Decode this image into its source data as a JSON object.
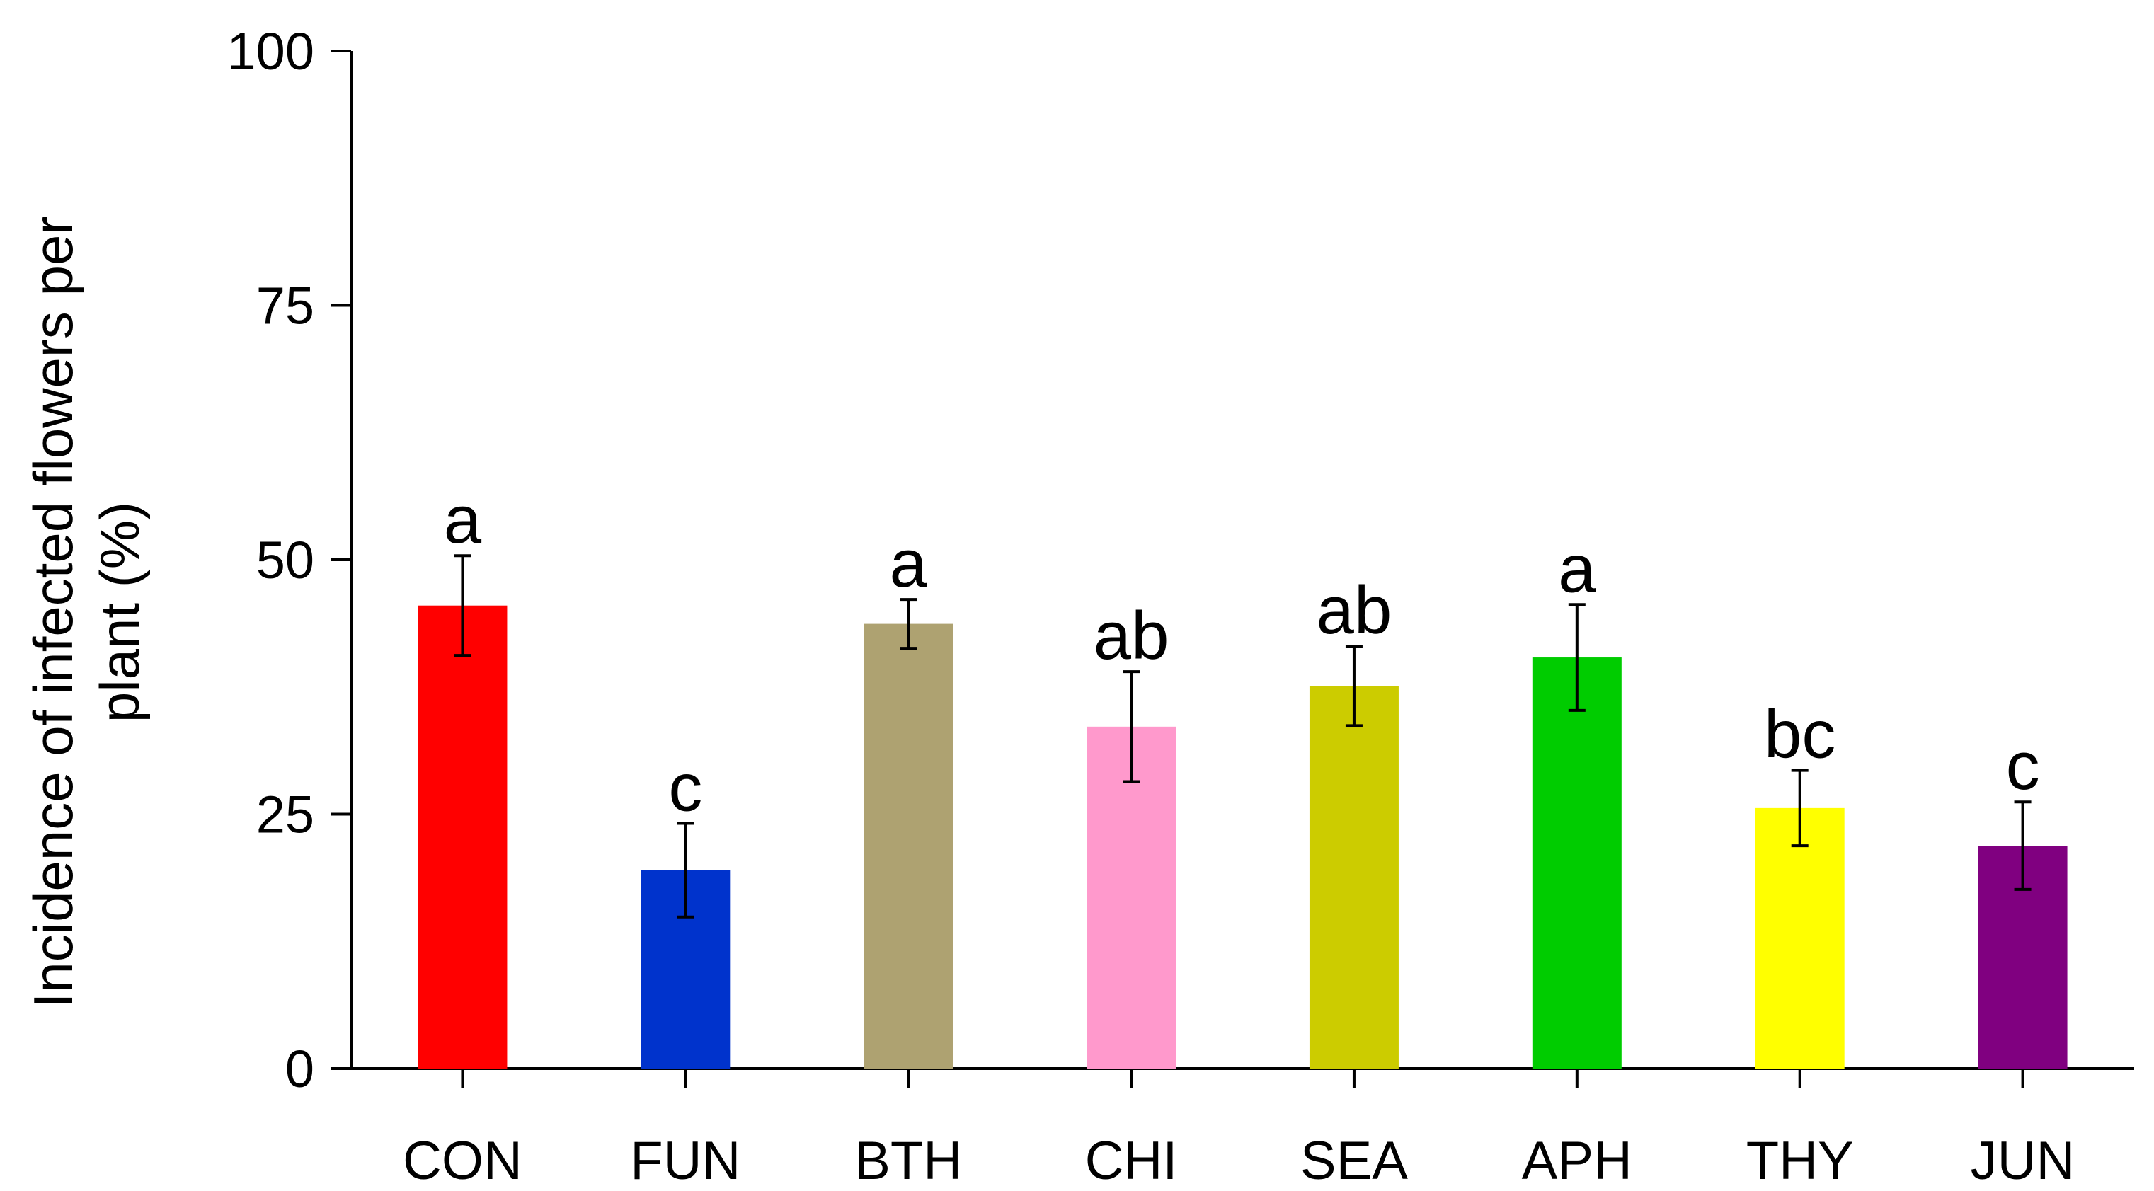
{
  "chart_data": {
    "type": "bar",
    "title": "",
    "xlabel": "",
    "ylabel_lines": [
      "Incidence of infected flowers per",
      "plant (%)"
    ],
    "ylim": [
      0,
      100
    ],
    "yticks": [
      0,
      25,
      50,
      75,
      100
    ],
    "grid": false,
    "legend": "none",
    "categories": [
      "CON",
      "FUN",
      "BTH",
      "CHI",
      "SEA",
      "APH",
      "THY",
      "JUN"
    ],
    "values": [
      45.5,
      19.5,
      43.7,
      33.6,
      37.6,
      40.4,
      25.6,
      21.9
    ],
    "errors": [
      4.9,
      4.6,
      2.4,
      5.4,
      3.9,
      5.2,
      3.7,
      4.3
    ],
    "significance_letters": [
      "a",
      "c",
      "a",
      "ab",
      "ab",
      "a",
      "bc",
      "c"
    ],
    "colors": [
      "#ff0000",
      "#0033cc",
      "#aea271",
      "#ff99cc",
      "#cccc00",
      "#00cc00",
      "#ffff00",
      "#800080"
    ]
  }
}
